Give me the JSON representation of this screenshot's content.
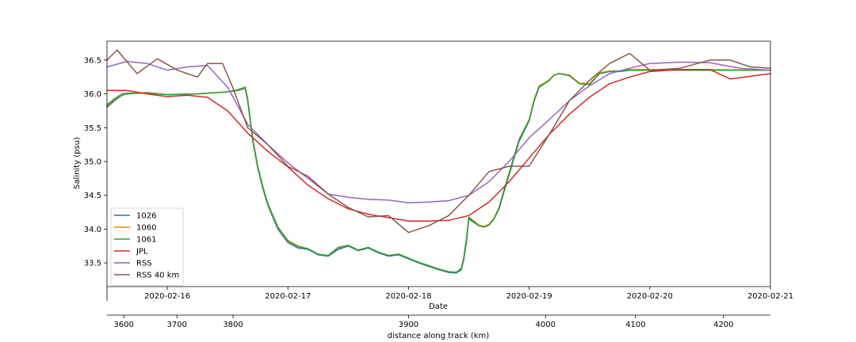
{
  "chart_data": {
    "type": "line",
    "xlabel": "Date",
    "ylabel": "Salinity (psu)",
    "secondary_xlabel": "distance along track (km)",
    "ylim": [
      33.15,
      36.78
    ],
    "xlim": [
      "2020-02-15 12:00",
      "2020-02-21 00:00"
    ],
    "x_ticks": [
      "2020-02-16",
      "2020-02-17",
      "2020-02-18",
      "2020-02-19",
      "2020-02-20",
      "2020-02-21"
    ],
    "y_ticks": [
      "33.5",
      "34.0",
      "34.5",
      "35.0",
      "35.5",
      "36.0",
      "36.5"
    ],
    "distance_ticks": [
      "3600",
      "3700",
      "3800",
      "3900",
      "4000",
      "4100",
      "4200"
    ],
    "distance_tick_dates": [
      "2020-02-15 15:20",
      "2020-02-16 01:55",
      "2020-02-16 13:05",
      "2020-02-18 00:00",
      "2020-02-19 03:15",
      "2020-02-19 21:10",
      "2020-02-20 14:40"
    ],
    "legend_position": "lower-left",
    "grid": false,
    "series": [
      {
        "name": "1026",
        "color": "#1f77b4",
        "x": [
          "2020-02-15 12:00",
          "2020-02-15 13:30",
          "2020-02-15 15:00",
          "2020-02-15 16:00",
          "2020-02-15 20:00",
          "2020-02-16 00:00",
          "2020-02-16 06:00",
          "2020-02-16 12:00",
          "2020-02-16 14:00",
          "2020-02-16 15:30",
          "2020-02-16 16:00",
          "2020-02-16 16:30",
          "2020-02-16 17:00",
          "2020-02-16 17:30",
          "2020-02-16 18:00",
          "2020-02-16 19:00",
          "2020-02-16 20:00",
          "2020-02-16 22:00",
          "2020-02-17 00:00",
          "2020-02-17 02:00",
          "2020-02-17 04:00",
          "2020-02-17 06:00",
          "2020-02-17 08:00",
          "2020-02-17 10:00",
          "2020-02-17 12:00",
          "2020-02-17 14:00",
          "2020-02-17 16:00",
          "2020-02-17 18:00",
          "2020-02-17 20:00",
          "2020-02-17 22:00",
          "2020-02-18 00:00",
          "2020-02-18 02:00",
          "2020-02-18 04:00",
          "2020-02-18 06:00",
          "2020-02-18 08:00",
          "2020-02-18 09:30",
          "2020-02-18 10:30",
          "2020-02-18 11:00",
          "2020-02-18 11:30",
          "2020-02-18 12:00",
          "2020-02-18 13:00",
          "2020-02-18 14:00",
          "2020-02-18 15:00",
          "2020-02-18 16:00",
          "2020-02-18 17:00",
          "2020-02-18 18:00",
          "2020-02-18 19:00",
          "2020-02-18 20:00",
          "2020-02-18 21:00",
          "2020-02-18 22:00",
          "2020-02-19 00:00",
          "2020-02-19 01:00",
          "2020-02-19 02:00",
          "2020-02-19 03:00",
          "2020-02-19 04:00",
          "2020-02-19 05:00",
          "2020-02-19 06:00",
          "2020-02-19 08:00",
          "2020-02-19 10:00",
          "2020-02-19 12:00",
          "2020-02-19 14:00",
          "2020-02-19 16:00",
          "2020-02-19 18:00",
          "2020-02-19 20:00",
          "2020-02-20 00:00",
          "2020-02-20 12:00",
          "2020-02-21 00:00"
        ],
        "y": [
          35.8,
          35.9,
          35.98,
          36.0,
          36.02,
          35.99,
          36.0,
          36.03,
          36.05,
          36.08,
          35.9,
          35.6,
          35.3,
          35.1,
          34.9,
          34.6,
          34.35,
          34.0,
          33.8,
          33.72,
          33.7,
          33.62,
          33.6,
          33.7,
          33.75,
          33.68,
          33.72,
          33.65,
          33.6,
          33.62,
          33.56,
          33.5,
          33.45,
          33.4,
          33.36,
          33.35,
          33.4,
          33.55,
          33.8,
          34.15,
          34.1,
          34.05,
          34.03,
          34.06,
          34.15,
          34.3,
          34.55,
          34.8,
          35.05,
          35.3,
          35.6,
          35.9,
          36.1,
          36.15,
          36.2,
          36.28,
          36.3,
          36.28,
          36.15,
          36.14,
          36.3,
          36.33,
          36.33,
          36.35,
          36.35,
          36.35,
          36.35
        ]
      },
      {
        "name": "1060",
        "color": "#ff7f0e",
        "x": [
          "2020-02-15 12:00",
          "2020-02-15 13:30",
          "2020-02-15 15:00",
          "2020-02-15 16:00",
          "2020-02-15 20:00",
          "2020-02-16 00:00",
          "2020-02-16 06:00",
          "2020-02-16 12:00",
          "2020-02-16 14:00",
          "2020-02-16 15:30",
          "2020-02-16 16:00",
          "2020-02-16 16:30",
          "2020-02-16 17:00",
          "2020-02-16 17:30",
          "2020-02-16 18:00",
          "2020-02-16 19:00",
          "2020-02-16 20:00",
          "2020-02-16 22:00",
          "2020-02-17 00:00",
          "2020-02-17 02:00",
          "2020-02-17 04:00",
          "2020-02-17 06:00",
          "2020-02-17 08:00",
          "2020-02-17 10:00",
          "2020-02-17 12:00",
          "2020-02-17 14:00",
          "2020-02-17 16:00",
          "2020-02-17 18:00",
          "2020-02-17 20:00",
          "2020-02-17 22:00",
          "2020-02-18 00:00",
          "2020-02-18 02:00",
          "2020-02-18 04:00",
          "2020-02-18 06:00",
          "2020-02-18 08:00",
          "2020-02-18 09:30",
          "2020-02-18 10:30",
          "2020-02-18 11:00",
          "2020-02-18 11:30",
          "2020-02-18 12:00",
          "2020-02-18 13:00",
          "2020-02-18 14:00",
          "2020-02-18 15:00",
          "2020-02-18 16:00",
          "2020-02-18 17:00",
          "2020-02-18 18:00",
          "2020-02-18 19:00",
          "2020-02-18 20:00",
          "2020-02-18 21:00",
          "2020-02-18 22:00",
          "2020-02-19 00:00",
          "2020-02-19 01:00",
          "2020-02-19 02:00",
          "2020-02-19 03:00",
          "2020-02-19 04:00",
          "2020-02-19 05:00",
          "2020-02-19 06:00",
          "2020-02-19 08:00",
          "2020-02-19 10:00",
          "2020-02-19 12:00",
          "2020-02-19 14:00",
          "2020-02-19 16:00",
          "2020-02-19 18:00",
          "2020-02-19 20:00",
          "2020-02-20 00:00",
          "2020-02-20 12:00",
          "2020-02-21 00:00"
        ],
        "y": [
          35.82,
          35.92,
          35.99,
          36.01,
          36.02,
          35.99,
          36.0,
          36.03,
          36.06,
          36.09,
          35.92,
          35.62,
          35.32,
          35.12,
          34.92,
          34.62,
          34.37,
          34.02,
          33.82,
          33.74,
          33.71,
          33.63,
          33.61,
          33.72,
          33.76,
          33.69,
          33.73,
          33.66,
          33.61,
          33.63,
          33.57,
          33.51,
          33.46,
          33.41,
          33.37,
          33.36,
          33.42,
          33.58,
          33.85,
          34.18,
          34.12,
          34.06,
          34.04,
          34.07,
          34.16,
          34.32,
          34.58,
          34.83,
          35.08,
          35.33,
          35.62,
          35.92,
          36.12,
          36.16,
          36.21,
          36.28,
          36.3,
          36.28,
          36.16,
          36.15,
          36.31,
          36.34,
          36.34,
          36.36,
          36.36,
          36.36,
          36.35
        ]
      },
      {
        "name": "1061",
        "color": "#2ca02c",
        "x": [
          "2020-02-15 12:00",
          "2020-02-15 13:30",
          "2020-02-15 15:00",
          "2020-02-15 16:00",
          "2020-02-15 20:00",
          "2020-02-16 00:00",
          "2020-02-16 06:00",
          "2020-02-16 12:00",
          "2020-02-16 14:00",
          "2020-02-16 15:30",
          "2020-02-16 16:00",
          "2020-02-16 16:30",
          "2020-02-16 17:00",
          "2020-02-16 17:30",
          "2020-02-16 18:00",
          "2020-02-16 19:00",
          "2020-02-16 20:00",
          "2020-02-16 22:00",
          "2020-02-17 00:00",
          "2020-02-17 02:00",
          "2020-02-17 04:00",
          "2020-02-17 06:00",
          "2020-02-17 08:00",
          "2020-02-17 10:00",
          "2020-02-17 12:00",
          "2020-02-17 14:00",
          "2020-02-17 16:00",
          "2020-02-17 18:00",
          "2020-02-17 20:00",
          "2020-02-17 22:00",
          "2020-02-18 00:00",
          "2020-02-18 02:00",
          "2020-02-18 04:00",
          "2020-02-18 06:00",
          "2020-02-18 08:00",
          "2020-02-18 09:30",
          "2020-02-18 10:30",
          "2020-02-18 11:00",
          "2020-02-18 11:30",
          "2020-02-18 12:00",
          "2020-02-18 13:00",
          "2020-02-18 14:00",
          "2020-02-18 15:00",
          "2020-02-18 16:00",
          "2020-02-18 17:00",
          "2020-02-18 18:00",
          "2020-02-18 19:00",
          "2020-02-18 20:00",
          "2020-02-18 21:00",
          "2020-02-18 22:00",
          "2020-02-19 00:00",
          "2020-02-19 01:00",
          "2020-02-19 02:00",
          "2020-02-19 03:00",
          "2020-02-19 04:00",
          "2020-02-19 05:00",
          "2020-02-19 06:00",
          "2020-02-19 08:00",
          "2020-02-19 10:00",
          "2020-02-19 12:00",
          "2020-02-19 14:00",
          "2020-02-19 16:00",
          "2020-02-19 18:00",
          "2020-02-19 20:00",
          "2020-02-20 00:00",
          "2020-02-20 12:00",
          "2020-02-21 00:00"
        ],
        "y": [
          35.84,
          35.93,
          36.0,
          36.01,
          36.01,
          35.99,
          36.0,
          36.03,
          36.06,
          36.1,
          35.93,
          35.63,
          35.33,
          35.13,
          34.93,
          34.63,
          34.38,
          34.03,
          33.83,
          33.75,
          33.71,
          33.63,
          33.61,
          33.73,
          33.76,
          33.69,
          33.73,
          33.66,
          33.61,
          33.63,
          33.57,
          33.51,
          33.46,
          33.41,
          33.37,
          33.36,
          33.42,
          33.58,
          33.85,
          34.17,
          34.11,
          34.05,
          34.03,
          34.06,
          34.15,
          34.31,
          34.57,
          34.82,
          35.07,
          35.32,
          35.61,
          35.91,
          36.11,
          36.15,
          36.2,
          36.28,
          36.3,
          36.27,
          36.15,
          36.14,
          36.3,
          36.33,
          36.34,
          36.35,
          36.35,
          36.35,
          36.35
        ]
      },
      {
        "name": "JPL",
        "color": "#d62728",
        "x": [
          "2020-02-15 12:00",
          "2020-02-15 16:00",
          "2020-02-15 20:00",
          "2020-02-16 00:00",
          "2020-02-16 04:00",
          "2020-02-16 08:00",
          "2020-02-16 12:00",
          "2020-02-16 16:00",
          "2020-02-16 20:00",
          "2020-02-17 00:00",
          "2020-02-17 04:00",
          "2020-02-17 08:00",
          "2020-02-17 12:00",
          "2020-02-17 16:00",
          "2020-02-17 20:00",
          "2020-02-18 00:00",
          "2020-02-18 04:00",
          "2020-02-18 08:00",
          "2020-02-18 12:00",
          "2020-02-18 16:00",
          "2020-02-18 20:00",
          "2020-02-19 00:00",
          "2020-02-19 04:00",
          "2020-02-19 08:00",
          "2020-02-19 12:00",
          "2020-02-19 16:00",
          "2020-02-19 20:00",
          "2020-02-20 00:00",
          "2020-02-20 06:00",
          "2020-02-20 12:00",
          "2020-02-20 16:00",
          "2020-02-20 20:00",
          "2020-02-21 00:00"
        ],
        "y": [
          36.05,
          36.05,
          36.0,
          35.96,
          35.98,
          35.95,
          35.75,
          35.42,
          35.15,
          34.92,
          34.65,
          34.45,
          34.3,
          34.22,
          34.17,
          34.12,
          34.12,
          34.13,
          34.2,
          34.4,
          34.7,
          35.05,
          35.4,
          35.7,
          35.95,
          36.15,
          36.25,
          36.33,
          36.36,
          36.36,
          36.22,
          36.26,
          36.3
        ]
      },
      {
        "name": "RSS",
        "color": "#9467bd",
        "x": [
          "2020-02-15 12:00",
          "2020-02-15 16:00",
          "2020-02-15 20:00",
          "2020-02-16 00:00",
          "2020-02-16 04:00",
          "2020-02-16 08:00",
          "2020-02-16 12:00",
          "2020-02-16 16:00",
          "2020-02-16 20:00",
          "2020-02-17 00:00",
          "2020-02-17 04:00",
          "2020-02-17 08:00",
          "2020-02-17 12:00",
          "2020-02-17 16:00",
          "2020-02-17 20:00",
          "2020-02-18 00:00",
          "2020-02-18 04:00",
          "2020-02-18 08:00",
          "2020-02-18 12:00",
          "2020-02-18 16:00",
          "2020-02-18 20:00",
          "2020-02-19 00:00",
          "2020-02-19 04:00",
          "2020-02-19 08:00",
          "2020-02-19 12:00",
          "2020-02-19 16:00",
          "2020-02-19 20:00",
          "2020-02-20 00:00",
          "2020-02-20 06:00",
          "2020-02-20 12:00",
          "2020-02-20 18:00",
          "2020-02-21 00:00"
        ],
        "y": [
          36.4,
          36.48,
          36.45,
          36.35,
          36.4,
          36.42,
          36.1,
          35.55,
          35.25,
          34.98,
          34.75,
          34.52,
          34.47,
          34.44,
          34.43,
          34.39,
          34.4,
          34.42,
          34.5,
          34.7,
          35.0,
          35.35,
          35.62,
          35.9,
          36.12,
          36.3,
          36.38,
          36.45,
          36.47,
          36.46,
          36.38,
          36.35
        ]
      },
      {
        "name": "RSS 40 km",
        "color": "#8c564b",
        "x": [
          "2020-02-15 12:00",
          "2020-02-15 14:00",
          "2020-02-15 18:00",
          "2020-02-15 22:00",
          "2020-02-16 02:00",
          "2020-02-16 06:00",
          "2020-02-16 08:00",
          "2020-02-16 11:00",
          "2020-02-16 13:00",
          "2020-02-16 16:00",
          "2020-02-16 20:00",
          "2020-02-17 00:00",
          "2020-02-17 04:00",
          "2020-02-17 08:00",
          "2020-02-17 12:00",
          "2020-02-17 16:00",
          "2020-02-17 20:00",
          "2020-02-18 00:00",
          "2020-02-18 04:00",
          "2020-02-18 08:00",
          "2020-02-18 12:00",
          "2020-02-18 16:00",
          "2020-02-18 20:00",
          "2020-02-19 00:00",
          "2020-02-19 04:00",
          "2020-02-19 08:00",
          "2020-02-19 12:00",
          "2020-02-19 16:00",
          "2020-02-19 20:00",
          "2020-02-20 00:00",
          "2020-02-20 06:00",
          "2020-02-20 12:00",
          "2020-02-20 16:00",
          "2020-02-20 20:00",
          "2020-02-21 00:00"
        ],
        "y": [
          36.5,
          36.65,
          36.3,
          36.52,
          36.35,
          36.25,
          36.45,
          36.45,
          36.1,
          35.5,
          35.25,
          34.93,
          34.78,
          34.52,
          34.32,
          34.18,
          34.2,
          33.95,
          34.05,
          34.2,
          34.5,
          34.85,
          34.93,
          34.93,
          35.4,
          35.9,
          36.2,
          36.45,
          36.6,
          36.35,
          36.38,
          36.5,
          36.5,
          36.4,
          36.38
        ]
      }
    ]
  }
}
